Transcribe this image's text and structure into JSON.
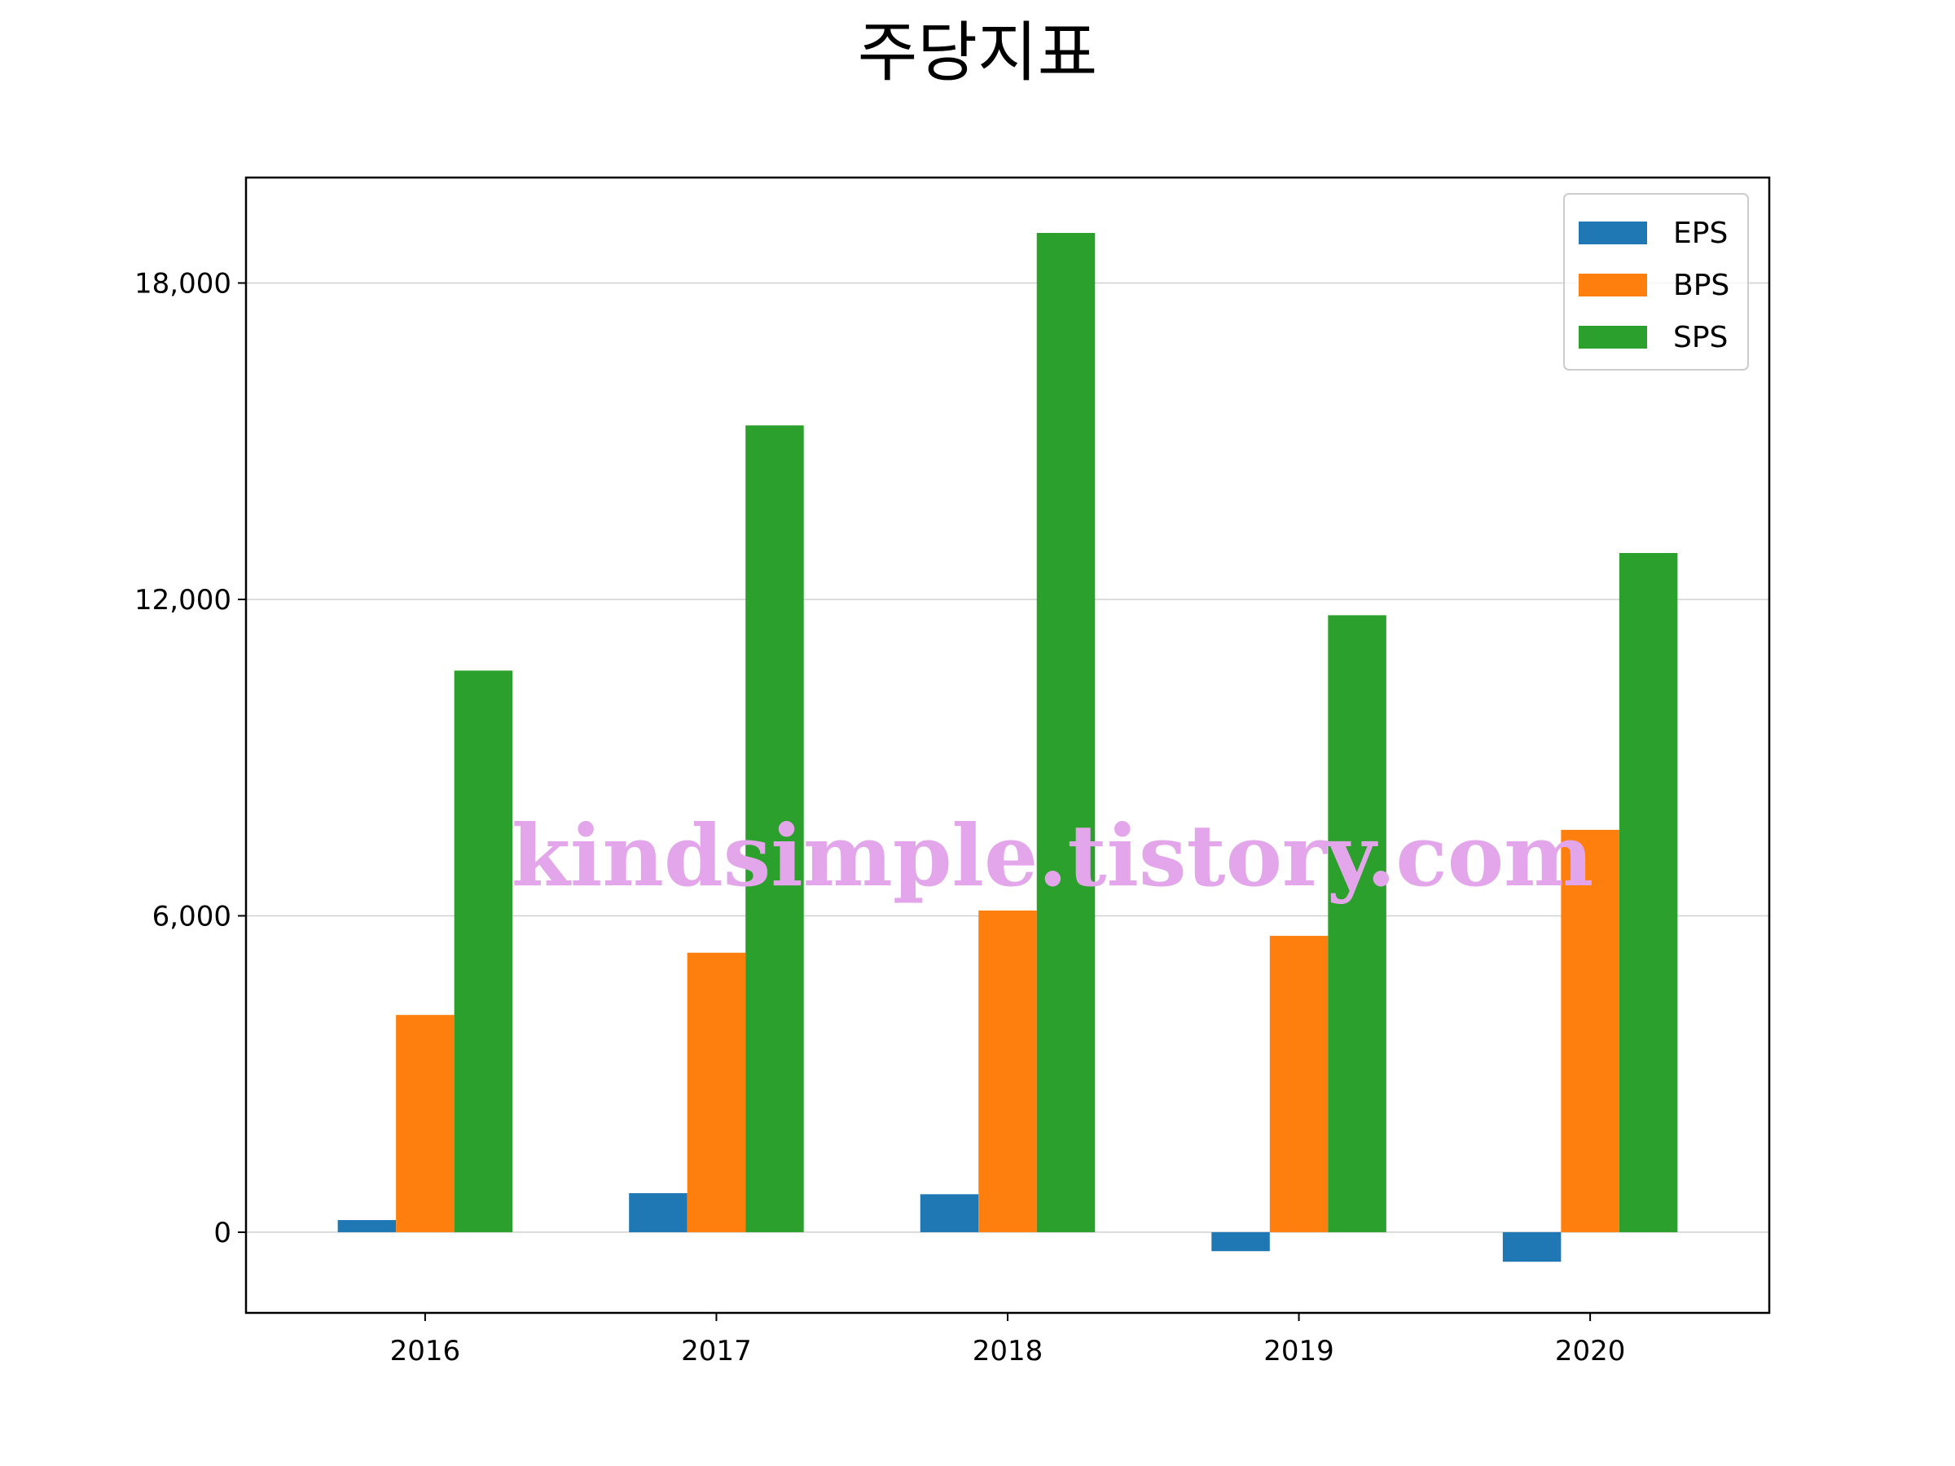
{
  "chart_data": {
    "type": "bar",
    "title": "주당지표",
    "xlabel": "",
    "ylabel": "",
    "categories": [
      "2016",
      "2017",
      "2018",
      "2019",
      "2020"
    ],
    "series": [
      {
        "name": "EPS",
        "color": "#1f77b4",
        "values": [
          230,
          740,
          720,
          -360,
          -560
        ]
      },
      {
        "name": "BPS",
        "color": "#ff7f0e",
        "values": [
          4120,
          5300,
          6100,
          5620,
          7630
        ]
      },
      {
        "name": "SPS",
        "color": "#2ca02c",
        "values": [
          10650,
          15300,
          18950,
          11700,
          12880
        ]
      }
    ],
    "ylim": [
      -1530,
      20000
    ],
    "yticks": [
      0,
      6000,
      12000,
      18000
    ],
    "ytick_labels": [
      "0",
      "6,000",
      "12,000",
      "18,000"
    ],
    "grid": "horizontal",
    "legend_position": "top-right"
  },
  "watermark": "kindsimple.tistory.com"
}
